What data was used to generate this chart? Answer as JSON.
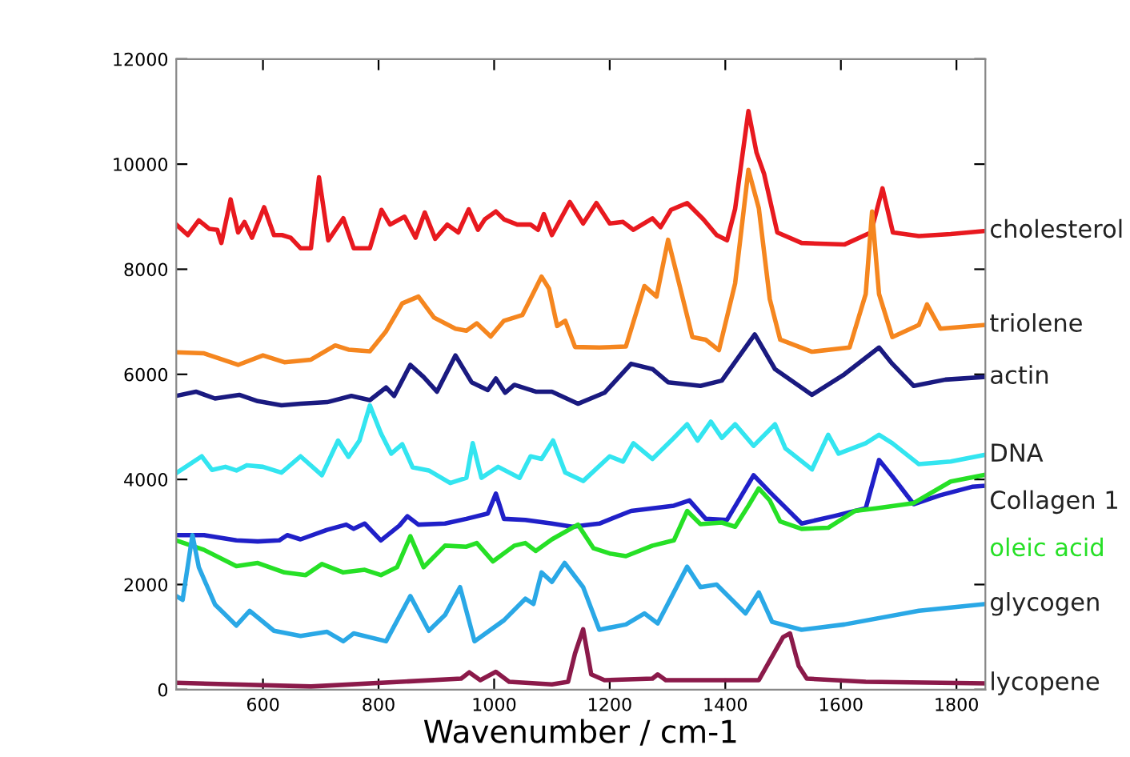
{
  "chart_data": {
    "type": "line",
    "xlabel": "Wavenumber / cm-1",
    "xlim": [
      450,
      1850
    ],
    "xticks": [
      600,
      800,
      1000,
      1200,
      1400,
      1600,
      1800
    ],
    "ylim": [
      0,
      12000
    ],
    "yticks": [
      0,
      2000,
      4000,
      6000,
      8000,
      10000,
      12000
    ],
    "grid": false,
    "legend": false,
    "marker": "none",
    "line_style": "solid",
    "series": [
      {
        "name": "cholesterol",
        "color": "#e8191f",
        "x": [
          450,
          470,
          489,
          507,
          521,
          528,
          544,
          557,
          568,
          581,
          602,
          619,
          633,
          648,
          665,
          683,
          697,
          713,
          739,
          757,
          785,
          805,
          820,
          845,
          864,
          880,
          898,
          919,
          938,
          956,
          972,
          984,
          1003,
          1017,
          1040,
          1063,
          1076,
          1086,
          1100,
          1131,
          1154,
          1177,
          1200,
          1223,
          1241,
          1274,
          1288,
          1306,
          1334,
          1362,
          1385,
          1403,
          1417,
          1440,
          1454,
          1467,
          1490,
          1532,
          1606,
          1652,
          1672,
          1690,
          1735,
          1790,
          1850
        ],
        "values": [
          8850,
          8650,
          8930,
          8770,
          8750,
          8500,
          9330,
          8700,
          8900,
          8600,
          9180,
          8650,
          8650,
          8600,
          8400,
          8400,
          9750,
          8550,
          8970,
          8400,
          8400,
          9130,
          8850,
          9000,
          8600,
          9080,
          8580,
          8850,
          8700,
          9140,
          8750,
          8950,
          9100,
          8950,
          8850,
          8850,
          8750,
          9050,
          8650,
          9280,
          8870,
          9260,
          8870,
          8900,
          8750,
          8970,
          8800,
          9130,
          9260,
          8950,
          8650,
          8550,
          9150,
          11010,
          10220,
          9820,
          8700,
          8500,
          8470,
          8700,
          9540,
          8700,
          8630,
          8670,
          8730
        ]
      },
      {
        "name": "triolene",
        "color": "#f5861f",
        "x": [
          450,
          498,
          557,
          600,
          637,
          683,
          725,
          748,
          785,
          813,
          841,
          869,
          896,
          933,
          952,
          970,
          994,
          1017,
          1049,
          1082,
          1095,
          1109,
          1123,
          1140,
          1182,
          1228,
          1260,
          1281,
          1301,
          1320,
          1343,
          1366,
          1389,
          1417,
          1440,
          1458,
          1477,
          1495,
          1550,
          1615,
          1643,
          1654,
          1666,
          1689,
          1735,
          1749,
          1772,
          1850
        ],
        "values": [
          6420,
          6400,
          6180,
          6360,
          6230,
          6280,
          6550,
          6470,
          6440,
          6820,
          7350,
          7480,
          7080,
          6870,
          6830,
          6970,
          6720,
          7020,
          7130,
          7860,
          7630,
          6920,
          7020,
          6520,
          6510,
          6530,
          7680,
          7480,
          8560,
          7730,
          6710,
          6660,
          6460,
          7730,
          9890,
          9160,
          7430,
          6660,
          6430,
          6510,
          7530,
          9100,
          7530,
          6710,
          6940,
          7330,
          6870,
          6940
        ]
      },
      {
        "name": "actin",
        "color": "#1a1a80",
        "x": [
          450,
          484,
          517,
          559,
          591,
          632,
          665,
          711,
          753,
          785,
          813,
          827,
          855,
          878,
          901,
          933,
          961,
          989,
          1003,
          1019,
          1035,
          1072,
          1100,
          1145,
          1191,
          1237,
          1274,
          1301,
          1357,
          1394,
          1451,
          1486,
          1550,
          1606,
          1666,
          1689,
          1726,
          1781,
          1850
        ],
        "values": [
          5590,
          5670,
          5540,
          5610,
          5490,
          5410,
          5440,
          5470,
          5590,
          5510,
          5750,
          5590,
          6180,
          5950,
          5670,
          6360,
          5850,
          5700,
          5920,
          5650,
          5800,
          5670,
          5670,
          5440,
          5650,
          6200,
          6100,
          5850,
          5780,
          5880,
          6760,
          6100,
          5610,
          6000,
          6510,
          6200,
          5780,
          5900,
          5950
        ]
      },
      {
        "name": "DNA",
        "color": "#33e5f0",
        "x": [
          450,
          494,
          512,
          535,
          554,
          572,
          600,
          632,
          665,
          702,
          730,
          748,
          767,
          785,
          804,
          822,
          841,
          859,
          887,
          924,
          952,
          963,
          978,
          1007,
          1044,
          1063,
          1082,
          1102,
          1123,
          1154,
          1200,
          1223,
          1241,
          1274,
          1311,
          1334,
          1352,
          1375,
          1394,
          1417,
          1449,
          1486,
          1504,
          1550,
          1578,
          1596,
          1643,
          1666,
          1689,
          1735,
          1790,
          1850
        ],
        "values": [
          4120,
          4440,
          4180,
          4240,
          4170,
          4270,
          4240,
          4130,
          4440,
          4080,
          4740,
          4430,
          4740,
          5410,
          4880,
          4490,
          4670,
          4230,
          4170,
          3930,
          4030,
          4690,
          4030,
          4240,
          4030,
          4440,
          4390,
          4740,
          4130,
          3970,
          4440,
          4340,
          4690,
          4390,
          4790,
          5050,
          4740,
          5100,
          4790,
          5050,
          4640,
          5050,
          4590,
          4190,
          4850,
          4490,
          4690,
          4850,
          4690,
          4290,
          4340,
          4470
        ]
      },
      {
        "name": "Collagen 1",
        "color": "#2020c8",
        "x": [
          450,
          498,
          554,
          591,
          628,
          642,
          665,
          711,
          744,
          757,
          776,
          804,
          836,
          850,
          869,
          915,
          952,
          989,
          1003,
          1017,
          1054,
          1100,
          1135,
          1182,
          1237,
          1274,
          1311,
          1338,
          1366,
          1403,
          1449,
          1477,
          1532,
          1587,
          1643,
          1666,
          1689,
          1726,
          1772,
          1827,
          1850
        ],
        "values": [
          2940,
          2940,
          2840,
          2820,
          2840,
          2940,
          2860,
          3040,
          3140,
          3060,
          3160,
          2840,
          3120,
          3300,
          3140,
          3160,
          3250,
          3350,
          3730,
          3250,
          3230,
          3160,
          3100,
          3160,
          3400,
          3450,
          3500,
          3600,
          3250,
          3230,
          4080,
          3760,
          3160,
          3300,
          3450,
          4370,
          4060,
          3530,
          3700,
          3860,
          3880
        ]
      },
      {
        "name": "oleic acid",
        "color": "#26e026",
        "x": [
          450,
          498,
          554,
          591,
          637,
          674,
          702,
          739,
          776,
          804,
          832,
          855,
          878,
          915,
          952,
          970,
          998,
          1035,
          1054,
          1072,
          1100,
          1145,
          1172,
          1200,
          1228,
          1274,
          1311,
          1334,
          1357,
          1394,
          1417,
          1440,
          1458,
          1477,
          1495,
          1532,
          1578,
          1624,
          1661,
          1726,
          1790,
          1850
        ],
        "values": [
          2840,
          2660,
          2350,
          2410,
          2230,
          2180,
          2390,
          2230,
          2280,
          2180,
          2330,
          2920,
          2330,
          2740,
          2720,
          2790,
          2440,
          2740,
          2790,
          2640,
          2860,
          3140,
          2690,
          2590,
          2540,
          2740,
          2840,
          3400,
          3150,
          3180,
          3100,
          3500,
          3830,
          3600,
          3200,
          3060,
          3080,
          3400,
          3450,
          3550,
          3960,
          4090
        ]
      },
      {
        "name": "glycogen",
        "color": "#2aa8e6",
        "x": [
          450,
          461,
          478,
          489,
          517,
          554,
          577,
          619,
          665,
          711,
          739,
          757,
          813,
          855,
          887,
          915,
          941,
          966,
          1017,
          1054,
          1068,
          1082,
          1100,
          1122,
          1154,
          1182,
          1228,
          1260,
          1283,
          1334,
          1357,
          1385,
          1435,
          1458,
          1481,
          1532,
          1606,
          1735,
          1850
        ],
        "values": [
          1780,
          1710,
          2940,
          2330,
          1620,
          1220,
          1500,
          1120,
          1020,
          1100,
          920,
          1070,
          920,
          1780,
          1120,
          1420,
          1950,
          920,
          1320,
          1730,
          1630,
          2230,
          2050,
          2410,
          1950,
          1140,
          1240,
          1450,
          1260,
          2340,
          1950,
          2000,
          1450,
          1850,
          1290,
          1140,
          1240,
          1500,
          1630
        ]
      },
      {
        "name": "lycopene",
        "color": "#8b1a4a",
        "x": [
          450,
          683,
          943,
          957,
          976,
          1003,
          1026,
          1100,
          1128,
          1140,
          1154,
          1168,
          1191,
          1274,
          1283,
          1297,
          1458,
          1500,
          1512,
          1527,
          1541,
          1643,
          1850
        ],
        "values": [
          130,
          60,
          210,
          330,
          180,
          340,
          150,
          100,
          150,
          690,
          1150,
          290,
          180,
          210,
          290,
          180,
          180,
          1000,
          1070,
          450,
          210,
          150,
          120
        ]
      }
    ]
  }
}
